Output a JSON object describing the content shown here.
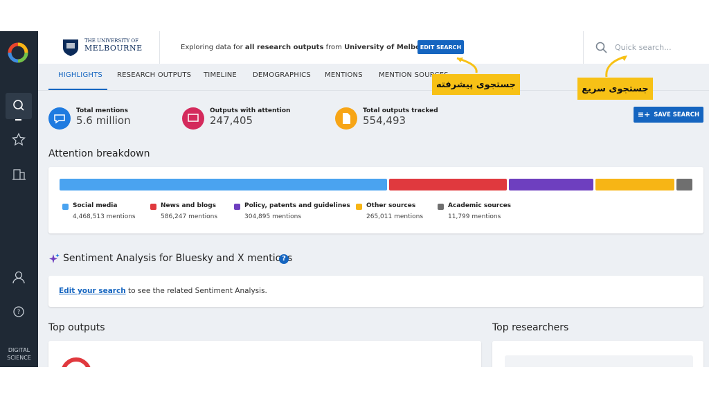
{
  "header": {
    "logo_top": "THE UNIVERSITY OF",
    "logo_bottom": "MELBOURNE",
    "explore": [
      "Exploring data for",
      "all research outputs",
      "from",
      "University of Melbourne"
    ],
    "edit_button": "EDIT SEARCH",
    "search_placeholder": "Quick search..."
  },
  "sidebar": {
    "brand": [
      "DIGITAL",
      "SCIENCE"
    ]
  },
  "tabs": [
    "HIGHLIGHTS",
    "RESEARCH OUTPUTS",
    "TIMELINE",
    "DEMOGRAPHICS",
    "MENTIONS",
    "MENTION SOURCES"
  ],
  "annotations": {
    "advanced": "جستجوی پیشرفته",
    "quick": "جستجوی سریع"
  },
  "stats": [
    {
      "label": "Total mentions",
      "value": "5.6 million"
    },
    {
      "label": "Outputs with attention",
      "value": "247,405"
    },
    {
      "label": "Total outputs tracked",
      "value": "554,493"
    }
  ],
  "save_button": "SAVE SEARCH",
  "breakdown": {
    "title": "Attention breakdown",
    "items": [
      {
        "name": "Social media",
        "count": "4,468,513 mentions",
        "color": "#4aa3f0"
      },
      {
        "name": "News and blogs",
        "count": "586,247 mentions",
        "color": "#e0393e"
      },
      {
        "name": "Policy, patents and guidelines",
        "count": "304,895 mentions",
        "color": "#6e3fbf"
      },
      {
        "name": "Other sources",
        "count": "265,011 mentions",
        "color": "#f7b515"
      },
      {
        "name": "Academic sources",
        "count": "11,799 mentions",
        "color": "#6f6f6f"
      }
    ]
  },
  "sentiment": {
    "title": "Sentiment Analysis for Bluesky and X mentions",
    "link": "Edit your search",
    "rest": "to see the related Sentiment Analysis."
  },
  "sections": {
    "outputs": "Top outputs",
    "researchers": "Top researchers"
  }
}
